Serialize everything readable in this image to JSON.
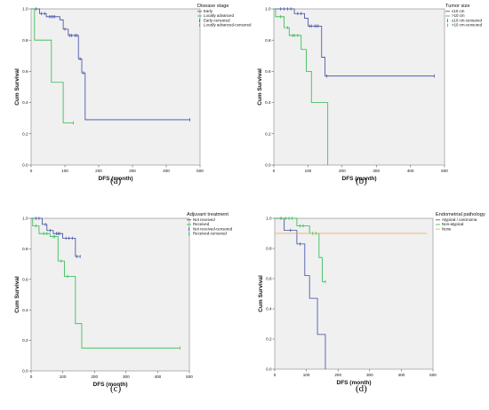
{
  "colors": {
    "blue": "#3a4aa0",
    "green": "#2db84a",
    "orange": "#f0a64a",
    "plot_bg": "#f0f0f0"
  },
  "chart_data": [
    {
      "type": "line",
      "panel_label": "(a)",
      "xlabel": "DFS (month)",
      "ylabel": "Cum Survival",
      "xlim": [
        0,
        500
      ],
      "ylim": [
        0,
        1
      ],
      "xticks": [
        0,
        100,
        200,
        300,
        400,
        500
      ],
      "yticks": [
        0.0,
        0.2,
        0.4,
        0.6,
        0.8,
        1.0
      ],
      "legend": {
        "title": "Disease stage",
        "position": "top-right",
        "entries": [
          "Early",
          "Locally advanced",
          "Early-censored",
          "Locally advanced-censored"
        ]
      },
      "series": [
        {
          "name": "Early",
          "color": "#3a4aa0",
          "steps": [
            [
              0,
              1.0
            ],
            [
              25,
              0.97
            ],
            [
              45,
              0.95
            ],
            [
              85,
              0.93
            ],
            [
              95,
              0.87
            ],
            [
              110,
              0.83
            ],
            [
              140,
              0.68
            ],
            [
              150,
              0.59
            ],
            [
              160,
              0.29
            ],
            [
              470,
              0.29
            ]
          ],
          "censored": [
            [
              15,
              1.0
            ],
            [
              30,
              0.97
            ],
            [
              40,
              0.97
            ],
            [
              55,
              0.95
            ],
            [
              60,
              0.95
            ],
            [
              65,
              0.95
            ],
            [
              70,
              0.95
            ],
            [
              100,
              0.87
            ],
            [
              115,
              0.83
            ],
            [
              120,
              0.83
            ],
            [
              130,
              0.83
            ],
            [
              135,
              0.83
            ],
            [
              145,
              0.68
            ],
            [
              155,
              0.59
            ],
            [
              470,
              0.29
            ]
          ]
        },
        {
          "name": "Locally advanced",
          "color": "#2db84a",
          "steps": [
            [
              0,
              1.0
            ],
            [
              10,
              0.8
            ],
            [
              60,
              0.53
            ],
            [
              95,
              0.27
            ],
            [
              125,
              0.27
            ]
          ],
          "censored": [
            [
              125,
              0.27
            ]
          ]
        }
      ]
    },
    {
      "type": "line",
      "panel_label": "(b)",
      "xlabel": "DFS (month)",
      "ylabel": "Cum Survival",
      "xlim": [
        0,
        500
      ],
      "ylim": [
        0,
        1
      ],
      "xticks": [
        0,
        100,
        200,
        300,
        400,
        500
      ],
      "yticks": [
        0.0,
        0.2,
        0.4,
        0.6,
        0.8,
        1.0
      ],
      "legend": {
        "title": "Tumor size",
        "position": "top-right",
        "entries": [
          "≤10 cm",
          ">10 cm",
          "≤10 cm-censored",
          ">10 cm-censored"
        ]
      },
      "series": [
        {
          "name": "≤10 cm",
          "color": "#3a4aa0",
          "steps": [
            [
              0,
              1.0
            ],
            [
              60,
              0.97
            ],
            [
              90,
              0.94
            ],
            [
              100,
              0.89
            ],
            [
              140,
              0.69
            ],
            [
              150,
              0.57
            ],
            [
              470,
              0.57
            ]
          ],
          "censored": [
            [
              20,
              1.0
            ],
            [
              30,
              1.0
            ],
            [
              40,
              1.0
            ],
            [
              50,
              1.0
            ],
            [
              70,
              0.97
            ],
            [
              80,
              0.97
            ],
            [
              105,
              0.89
            ],
            [
              110,
              0.89
            ],
            [
              120,
              0.89
            ],
            [
              125,
              0.89
            ],
            [
              130,
              0.89
            ],
            [
              155,
              0.57
            ],
            [
              470,
              0.57
            ]
          ]
        },
        {
          "name": ">10 cm",
          "color": "#2db84a",
          "steps": [
            [
              0,
              1.0
            ],
            [
              5,
              0.95
            ],
            [
              30,
              0.88
            ],
            [
              45,
              0.83
            ],
            [
              80,
              0.74
            ],
            [
              95,
              0.6
            ],
            [
              110,
              0.4
            ],
            [
              155,
              0.4
            ],
            [
              158,
              0.0
            ]
          ],
          "censored": [
            [
              20,
              0.95
            ],
            [
              40,
              0.88
            ],
            [
              55,
              0.83
            ],
            [
              60,
              0.83
            ],
            [
              70,
              0.83
            ]
          ]
        }
      ]
    },
    {
      "type": "line",
      "panel_label": "(c)",
      "xlabel": "DFS (month)",
      "ylabel": "Cum Survival",
      "xlim": [
        0,
        500
      ],
      "ylim": [
        0,
        1
      ],
      "xticks": [
        0,
        100,
        200,
        300,
        400,
        500
      ],
      "yticks": [
        0.0,
        0.2,
        0.4,
        0.6,
        0.8,
        1.0
      ],
      "legend": {
        "title": "Adjuvant treatment",
        "position": "top-right",
        "entries": [
          "Not received",
          "Received",
          "Not received-censored",
          "Received-censored"
        ]
      },
      "series": [
        {
          "name": "Not received",
          "color": "#3a4aa0",
          "steps": [
            [
              0,
              1.0
            ],
            [
              35,
              0.96
            ],
            [
              50,
              0.92
            ],
            [
              70,
              0.9
            ],
            [
              100,
              0.87
            ],
            [
              140,
              0.75
            ],
            [
              155,
              0.75
            ]
          ],
          "censored": [
            [
              15,
              1.0
            ],
            [
              25,
              1.0
            ],
            [
              45,
              0.96
            ],
            [
              60,
              0.92
            ],
            [
              80,
              0.9
            ],
            [
              85,
              0.9
            ],
            [
              90,
              0.9
            ],
            [
              110,
              0.87
            ],
            [
              120,
              0.87
            ],
            [
              130,
              0.87
            ],
            [
              145,
              0.75
            ],
            [
              155,
              0.75
            ]
          ]
        },
        {
          "name": "Received",
          "color": "#2db84a",
          "steps": [
            [
              0,
              1.0
            ],
            [
              5,
              0.95
            ],
            [
              25,
              0.9
            ],
            [
              60,
              0.88
            ],
            [
              85,
              0.72
            ],
            [
              105,
              0.62
            ],
            [
              140,
              0.31
            ],
            [
              160,
              0.15
            ],
            [
              470,
              0.15
            ]
          ],
          "censored": [
            [
              15,
              0.95
            ],
            [
              40,
              0.9
            ],
            [
              50,
              0.9
            ],
            [
              70,
              0.88
            ],
            [
              75,
              0.88
            ],
            [
              95,
              0.72
            ],
            [
              115,
              0.62
            ],
            [
              470,
              0.15
            ]
          ]
        }
      ]
    },
    {
      "type": "line",
      "panel_label": "(d)",
      "xlabel": "DFS (month)",
      "ylabel": "Cum Survival",
      "xlim": [
        0,
        500
      ],
      "ylim": [
        0,
        1
      ],
      "xticks": [
        0,
        100,
        200,
        300,
        400,
        500
      ],
      "yticks": [
        0.0,
        0.2,
        0.4,
        0.6,
        0.8,
        1.0
      ],
      "legend": {
        "title": "Endometrial pathology",
        "position": "top-right",
        "entries": [
          "Atypical / carcinoma",
          "Non-atypical",
          "None"
        ]
      },
      "series": [
        {
          "name": "Atypical / carcinoma",
          "color": "#3a4aa0",
          "steps": [
            [
              0,
              1.0
            ],
            [
              30,
              0.92
            ],
            [
              70,
              0.83
            ],
            [
              95,
              0.62
            ],
            [
              110,
              0.47
            ],
            [
              135,
              0.23
            ],
            [
              160,
              0.0
            ]
          ],
          "censored": [
            [
              20,
              1.0
            ],
            [
              50,
              0.92
            ],
            [
              80,
              0.83
            ]
          ]
        },
        {
          "name": "Non-atypical",
          "color": "#2db84a",
          "steps": [
            [
              0,
              1.0
            ],
            [
              70,
              0.95
            ],
            [
              110,
              0.9
            ],
            [
              140,
              0.74
            ],
            [
              150,
              0.58
            ],
            [
              160,
              0.58
            ]
          ],
          "censored": [
            [
              20,
              1.0
            ],
            [
              35,
              1.0
            ],
            [
              45,
              1.0
            ],
            [
              55,
              1.0
            ],
            [
              80,
              0.95
            ],
            [
              90,
              0.95
            ],
            [
              120,
              0.9
            ],
            [
              130,
              0.9
            ],
            [
              160,
              0.58
            ]
          ]
        },
        {
          "name": "None",
          "color": "#f0a64a",
          "steps": [
            [
              0,
              0.9
            ],
            [
              480,
              0.9
            ]
          ],
          "censored": []
        }
      ]
    }
  ]
}
